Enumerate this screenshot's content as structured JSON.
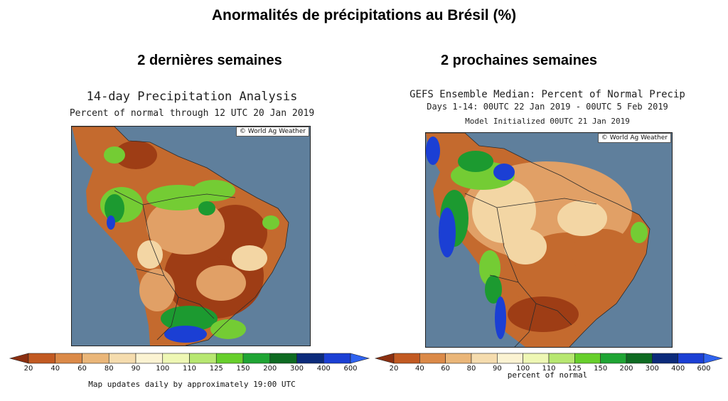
{
  "page": {
    "title": "Anormalités de précipitations au Brésil (%)"
  },
  "left": {
    "heading": "2 dernières semaines",
    "map_title": "14-day Precipitation Analysis",
    "map_subtitle": "Percent of normal through 12 UTC 20 Jan 2019",
    "copyright": "© World Ag Weather",
    "footnote": "Map updates daily by approximately 19:00 UTC"
  },
  "right": {
    "heading": "2 prochaines semaines",
    "map_title": "GEFS Ensemble Median: Percent of Normal Precip",
    "map_subtitle": "Days 1-14: 00UTC 22 Jan 2019 - 00UTC 5 Feb 2019",
    "map_subtitle2": "Model Initialized 00UTC 21 Jan 2019",
    "copyright": "© World Ag Weather",
    "footnote": "percent of normal"
  },
  "legend": {
    "ticks": [
      "20",
      "40",
      "60",
      "80",
      "90",
      "100",
      "110",
      "125",
      "150",
      "200",
      "300",
      "400",
      "600"
    ],
    "colors": [
      "#9c3a12",
      "#c25a22",
      "#db8a48",
      "#eab679",
      "#f5dcae",
      "#fbf3d2",
      "#eef7b4",
      "#b7e771",
      "#67cf2c",
      "#1fa534",
      "#0e6b22",
      "#0c2b7b",
      "#1b3fd4"
    ],
    "end_low": "#8b2f10",
    "end_high": "#2f63f0"
  },
  "map_colors": {
    "ocean": "#5f7f9c",
    "land_dry": "#c46a2e",
    "land_very_dry": "#9e3d15",
    "land_moderate": "#e1a066",
    "land_normal": "#f3d6a4",
    "land_wet": "#74cc34",
    "land_very_wet": "#1c9a30",
    "land_extreme": "#1b3fd4",
    "border": "#2b2b2b"
  }
}
